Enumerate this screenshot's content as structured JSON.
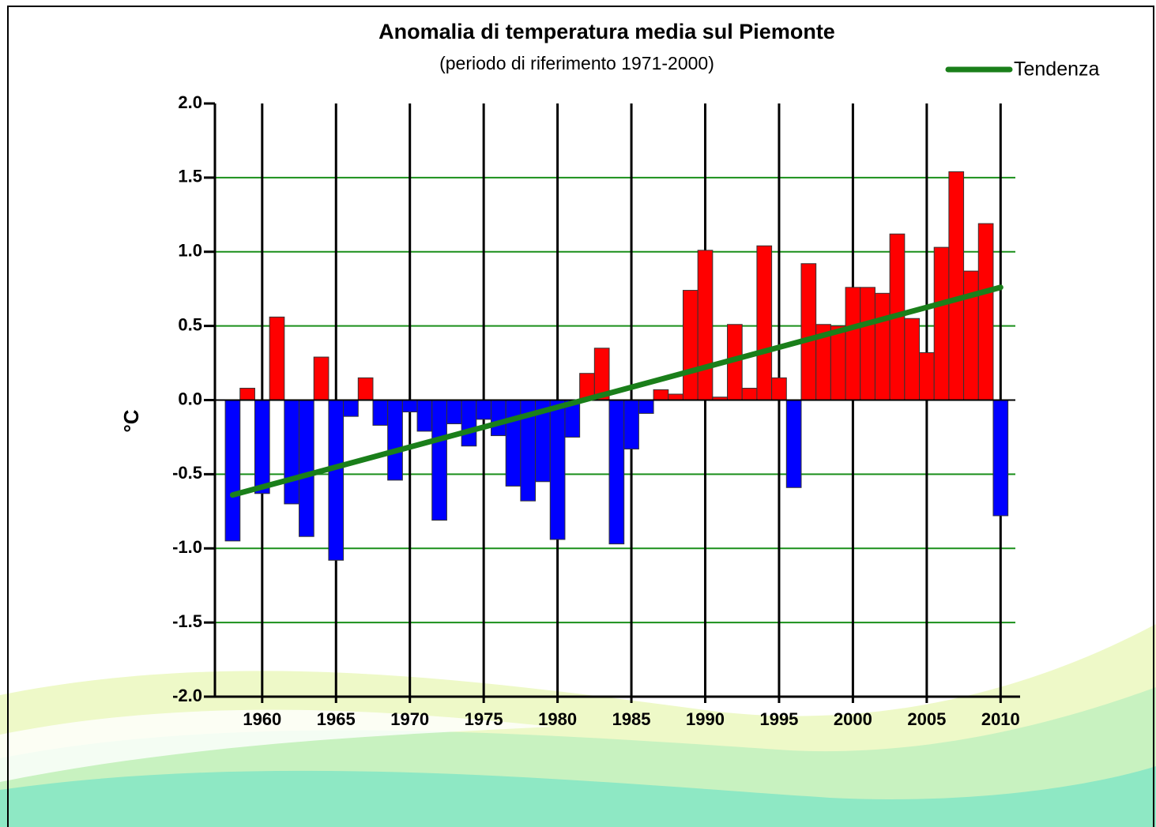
{
  "chart_data": {
    "type": "bar",
    "title": "Anomalia di temperatura media sul Piemonte",
    "subtitle": "(periodo di riferimento 1971-2000)",
    "ylabel": "°C",
    "x": [
      1958,
      1959,
      1960,
      1961,
      1962,
      1963,
      1964,
      1965,
      1966,
      1967,
      1968,
      1969,
      1970,
      1971,
      1972,
      1973,
      1974,
      1975,
      1976,
      1977,
      1978,
      1979,
      1980,
      1981,
      1982,
      1983,
      1984,
      1985,
      1986,
      1987,
      1988,
      1989,
      1990,
      1991,
      1992,
      1993,
      1994,
      1995,
      1996,
      1997,
      1998,
      1999,
      2000,
      2001,
      2002,
      2003,
      2004,
      2005,
      2006,
      2007,
      2008,
      2009,
      2010
    ],
    "values": [
      -0.95,
      0.08,
      -0.63,
      0.56,
      -0.7,
      -0.92,
      0.29,
      -1.08,
      -0.11,
      0.15,
      -0.17,
      -0.54,
      -0.08,
      -0.21,
      -0.81,
      -0.16,
      -0.31,
      -0.13,
      -0.24,
      -0.58,
      -0.68,
      -0.55,
      -0.94,
      -0.25,
      0.18,
      0.35,
      -0.97,
      -0.33,
      -0.09,
      0.07,
      0.04,
      0.74,
      1.01,
      0.02,
      0.51,
      0.08,
      1.04,
      0.15,
      -0.59,
      0.92,
      0.51,
      0.5,
      0.76,
      0.76,
      0.72,
      1.12,
      0.55,
      0.32,
      1.03,
      1.54,
      0.87,
      1.19,
      -0.78
    ],
    "color_positive": "#ff0000",
    "color_negative": "#0000ff",
    "trend": {
      "name": "Tendenza",
      "color": "#1a7f1a",
      "x": [
        1958,
        2010
      ],
      "values": [
        -0.64,
        0.76
      ]
    },
    "xlim": [
      1956.8,
      2011
    ],
    "xticks": [
      1960,
      1965,
      1970,
      1975,
      1980,
      1985,
      1990,
      1995,
      2000,
      2005,
      2010
    ],
    "ylim": [
      -2,
      2
    ],
    "yticks": [
      {
        "value": -2,
        "label": "-2.0"
      },
      -1.5,
      {
        "value": -1,
        "label": "-1.0"
      },
      -0.5,
      {
        "value": 0,
        "label": "0.0"
      },
      0.5,
      {
        "value": 1,
        "label": "1.0"
      },
      1.5,
      {
        "value": 2,
        "label": "2.0"
      }
    ],
    "grid": true,
    "grid_color": "#1a8f1a",
    "xgrid_color": "#000000",
    "legend": "top-right"
  }
}
